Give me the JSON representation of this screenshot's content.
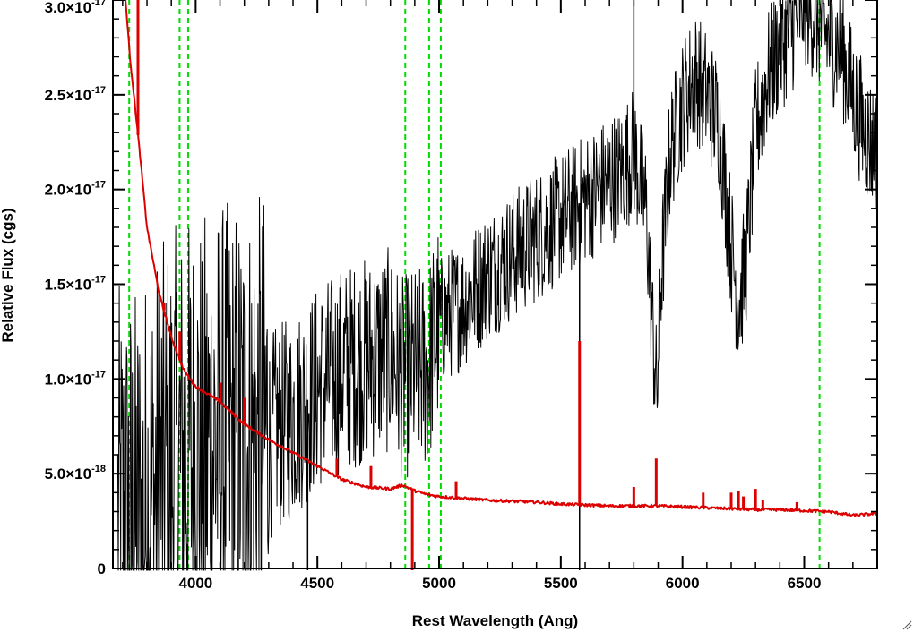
{
  "chart_data": {
    "type": "line",
    "xlabel": "Rest Wavelength (Ang)",
    "ylabel": "Relative Flux (cgs)",
    "xlim": [
      3660,
      6800
    ],
    "ylim": [
      0,
      3e-17
    ],
    "x_ticks": [
      {
        "value": 4000,
        "label": "4000"
      },
      {
        "value": 4500,
        "label": "4500"
      },
      {
        "value": 5000,
        "label": "5000"
      },
      {
        "value": 5500,
        "label": "5500"
      },
      {
        "value": 6000,
        "label": "6000"
      },
      {
        "value": 6500,
        "label": "6500"
      }
    ],
    "y_ticks": [
      {
        "value": 0,
        "mantissa": "0",
        "exponent": ""
      },
      {
        "value": 5e-18,
        "mantissa": "5.0×10",
        "exponent": "-18"
      },
      {
        "value": 1e-17,
        "mantissa": "1.0×10",
        "exponent": "-17"
      },
      {
        "value": 1.5e-17,
        "mantissa": "1.5×10",
        "exponent": "-17"
      },
      {
        "value": 2e-17,
        "mantissa": "2.0×10",
        "exponent": "-17"
      },
      {
        "value": 2.5e-17,
        "mantissa": "2.5×10",
        "exponent": "-17"
      },
      {
        "value": 3e-17,
        "mantissa": "3.0×10",
        "exponent": "-17"
      }
    ],
    "reference_lines": {
      "color": "#00dd00",
      "style": "dashed",
      "x": [
        3727,
        3934,
        3969,
        4861,
        4959,
        5007,
        6563
      ]
    },
    "series": [
      {
        "color": "#000000",
        "style": "noisy",
        "x": [
          3680,
          3720,
          3760,
          3800,
          3850,
          3900,
          3950,
          4000,
          4100,
          4200,
          4300,
          4400,
          4500,
          4600,
          4700,
          4800,
          4850,
          4900,
          4950,
          5000,
          5100,
          5200,
          5300,
          5400,
          5500,
          5600,
          5700,
          5750,
          5800,
          5850,
          5880,
          5895,
          5910,
          5950,
          6000,
          6050,
          6100,
          6150,
          6200,
          6230,
          6260,
          6300,
          6350,
          6400,
          6450,
          6500,
          6550,
          6600,
          6650,
          6700,
          6750,
          6800
        ],
        "y": [
          2e-18,
          2e-18,
          2e-18,
          3e-18,
          4e-18,
          5e-18,
          5.5e-18,
          6e-18,
          6.5e-18,
          6.5e-18,
          7e-18,
          8e-18,
          9.5e-18,
          1.05e-17,
          1.1e-17,
          1.15e-17,
          1e-17,
          1.05e-17,
          1.05e-17,
          1.3e-17,
          1.4e-17,
          1.55e-17,
          1.65e-17,
          1.75e-17,
          1.85e-17,
          1.95e-17,
          2.05e-17,
          2.1e-17,
          2.2e-17,
          1.9e-17,
          1.2e-17,
          9e-18,
          1.5e-17,
          2.2e-17,
          2.45e-17,
          2.6e-17,
          2.5e-17,
          2.35e-17,
          1.7e-17,
          1.4e-17,
          1.6e-17,
          2.3e-17,
          2.6e-17,
          2.75e-17,
          2.85e-17,
          3e-17,
          2.9e-17,
          2.8e-17,
          2.75e-17,
          2.5e-17,
          2.3e-17,
          2.2e-17
        ],
        "spikes": [
          {
            "x": 5577,
            "y": -2e-18
          },
          {
            "x": 4460,
            "y": -2e-18
          },
          {
            "x": 5800,
            "y": 3.2e-17
          }
        ]
      },
      {
        "color": "#dd0000",
        "style": "smooth",
        "x": [
          3700,
          3730,
          3750,
          3770,
          3800,
          3850,
          3900,
          3950,
          4000,
          4100,
          4200,
          4300,
          4400,
          4500,
          4600,
          4700,
          4800,
          4850,
          4900,
          4950,
          5000,
          5100,
          5200,
          5300,
          5400,
          5500,
          5600,
          5700,
          5800,
          5900,
          6000,
          6100,
          6200,
          6300,
          6400,
          6500,
          6600,
          6700,
          6800
        ],
        "y": [
          3.2e-17,
          2.7e-17,
          2.45e-17,
          2.2e-17,
          1.8e-17,
          1.45e-17,
          1.22e-17,
          1.05e-17,
          9.6e-18,
          8.8e-18,
          7.6e-18,
          6.8e-18,
          6.1e-18,
          5.4e-18,
          4.7e-18,
          4.3e-18,
          4.2e-18,
          4.4e-18,
          4.1e-18,
          3.9e-18,
          3.8e-18,
          3.7e-18,
          3.6e-18,
          3.55e-18,
          3.5e-18,
          3.4e-18,
          3.35e-18,
          3.3e-18,
          3.3e-18,
          3.3e-18,
          3.25e-18,
          3.2e-18,
          3.15e-18,
          3.1e-18,
          3.1e-18,
          3.05e-18,
          3e-18,
          2.8e-18,
          2.9e-18
        ],
        "spikes": [
          {
            "x": 3763,
            "y": 3.2e-17
          },
          {
            "x": 3869,
            "y": 1.4e-17
          },
          {
            "x": 3889,
            "y": 1.25e-17
          },
          {
            "x": 3935,
            "y": 1.25e-17
          },
          {
            "x": 4102,
            "y": 9.8e-18
          },
          {
            "x": 4200,
            "y": 9e-18
          },
          {
            "x": 4580,
            "y": 5.8e-18
          },
          {
            "x": 4720,
            "y": 5.4e-18
          },
          {
            "x": 4890,
            "y": -2e-18
          },
          {
            "x": 5070,
            "y": 4.6e-18
          },
          {
            "x": 5577,
            "y": 1.2e-17
          },
          {
            "x": 5800,
            "y": 4.3e-18
          },
          {
            "x": 5892,
            "y": 5.8e-18
          },
          {
            "x": 6085,
            "y": 4e-18
          },
          {
            "x": 6200,
            "y": 4e-18
          },
          {
            "x": 6230,
            "y": 4.1e-18
          },
          {
            "x": 6250,
            "y": 3.8e-18
          },
          {
            "x": 6300,
            "y": 4.2e-18
          },
          {
            "x": 6330,
            "y": 3.6e-18
          },
          {
            "x": 6470,
            "y": 3.5e-18
          }
        ]
      }
    ]
  }
}
